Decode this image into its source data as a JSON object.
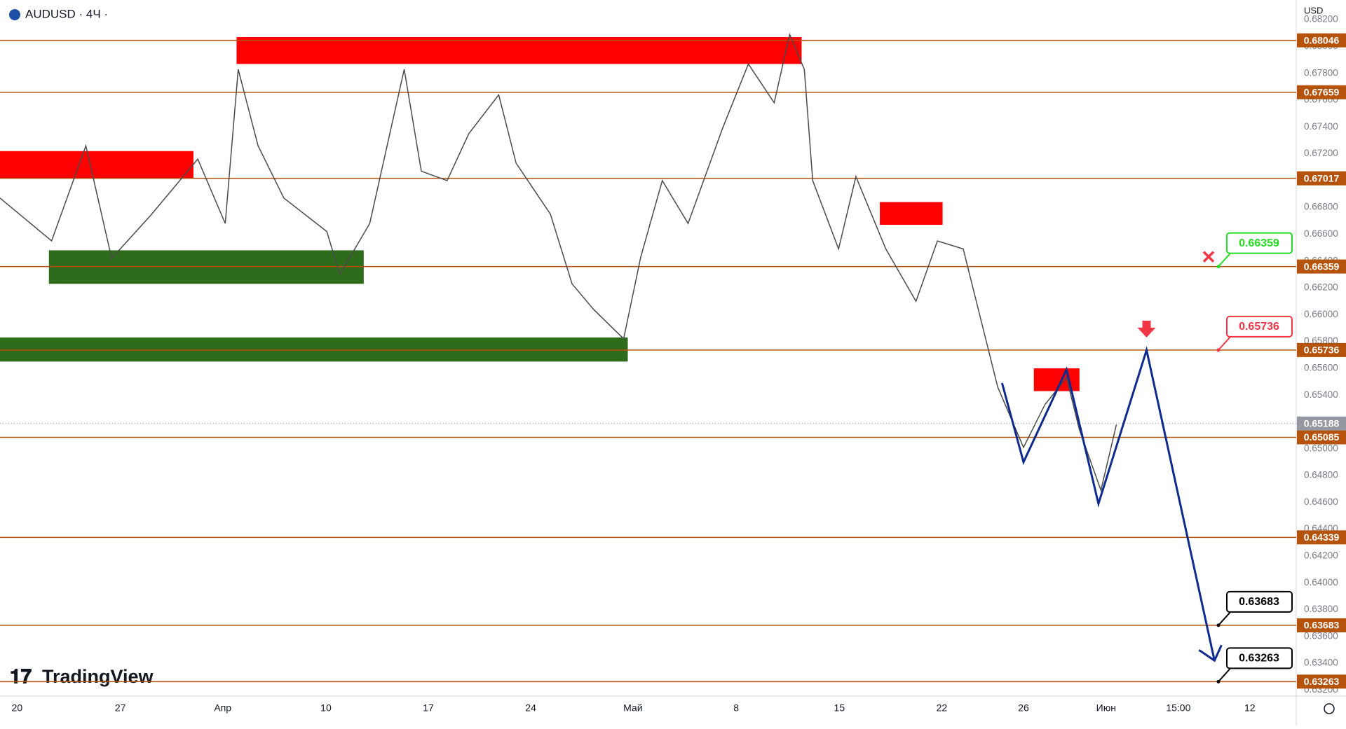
{
  "header": {
    "symbol": "AUDUSD · 4Ч ·",
    "currency": "USD",
    "brand": "TradingView"
  },
  "chart_data": {
    "type": "line",
    "color": "#4a4a4a",
    "x": [
      -0.83,
      1.67,
      3.33,
      4.58,
      6.46,
      8.75,
      10.08,
      10.71,
      11.67,
      12.92,
      15,
      15.63,
      17.08,
      18.75,
      19.58,
      20.83,
      21.88,
      23.33,
      24.17,
      25.83,
      26.88,
      27.92,
      29.38,
      30.21,
      31.25,
      32.5,
      34.17,
      35.42,
      36.67,
      37.42,
      38.13,
      38.54,
      39.79,
      40.63,
      42.08,
      43.54,
      44.58,
      45.83,
      47.5,
      48.75,
      49.79,
      50.83,
      51.46,
      52.5,
      53.25
    ],
    "values": [
      0.6687,
      0.6655,
      0.6726,
      0.6642,
      0.6674,
      0.6716,
      0.6668,
      0.6783,
      0.6726,
      0.6687,
      0.6662,
      0.663,
      0.6668,
      0.6783,
      0.6707,
      0.67,
      0.6735,
      0.6764,
      0.6713,
      0.6675,
      0.6623,
      0.6604,
      0.6582,
      0.6643,
      0.67,
      0.6668,
      0.6739,
      0.6787,
      0.6758,
      0.6809,
      0.6783,
      0.67,
      0.6649,
      0.6703,
      0.6649,
      0.661,
      0.6655,
      0.6649,
      0.6546,
      0.6501,
      0.6533,
      0.6553,
      0.6514,
      0.6469,
      0.6518
    ],
    "projection": {
      "color": "#0d2a8c",
      "x": [
        47.71,
        48.75,
        50.83,
        52.38,
        54.71,
        58
      ],
      "values": [
        0.6549,
        0.649,
        0.6559,
        0.6459,
        0.65736,
        0.6342
      ]
    },
    "zones": [
      {
        "x": [
          10.63,
          38
        ],
        "y": [
          0.6787,
          0.6807
        ],
        "color": "#ff0000"
      },
      {
        "x": [
          -0.83,
          8.54
        ],
        "y": [
          0.6702,
          0.6722
        ],
        "color": "#ff0000"
      },
      {
        "x": [
          1.54,
          16.79
        ],
        "y": [
          0.6623,
          0.6648
        ],
        "color": "#2e6b1a"
      },
      {
        "x": [
          -0.83,
          29.58
        ],
        "y": [
          0.6565,
          0.6583
        ],
        "color": "#2e6b1a"
      },
      {
        "x": [
          41.79,
          44.83
        ],
        "y": [
          0.6667,
          0.6684
        ],
        "color": "#ff0000"
      },
      {
        "x": [
          49.25,
          51.46
        ],
        "y": [
          0.6543,
          0.656
        ],
        "color": "#ff0000"
      }
    ],
    "levels": [
      0.68046,
      0.67659,
      0.67017,
      0.66359,
      0.65736,
      0.65085,
      0.64339,
      0.63683,
      0.63263
    ],
    "level_color": "#b5530c",
    "last_price": 0.65188,
    "callouts": [
      {
        "value": 0.66359,
        "color": "#22dd22"
      },
      {
        "value": 0.65736,
        "color": "#f23645"
      },
      {
        "value": 0.63683,
        "color": "#000000"
      },
      {
        "value": 0.63263,
        "color": "#000000"
      }
    ],
    "xlim": [
      -0.83,
      61.96
    ],
    "ylim": [
      0.63155,
      0.68347
    ],
    "xticks": [
      {
        "value": 0,
        "label": "20"
      },
      {
        "value": 5,
        "label": "27"
      },
      {
        "value": 9.96,
        "label": "Апр"
      },
      {
        "value": 14.96,
        "label": "10"
      },
      {
        "value": 19.92,
        "label": "17"
      },
      {
        "value": 24.88,
        "label": "24"
      },
      {
        "value": 29.83,
        "label": "Май"
      },
      {
        "value": 34.83,
        "label": "8"
      },
      {
        "value": 39.83,
        "label": "15"
      },
      {
        "value": 44.79,
        "label": "22"
      },
      {
        "value": 48.75,
        "label": "26"
      },
      {
        "value": 52.75,
        "label": "Июн"
      },
      {
        "value": 56.25,
        "label": "15:00"
      },
      {
        "value": 59.71,
        "label": "12"
      }
    ],
    "yticks": [
      {
        "value": 0.632,
        "label": "0.63200"
      },
      {
        "value": 0.634,
        "label": "0.63400"
      },
      {
        "value": 0.636,
        "label": "0.63600"
      },
      {
        "value": 0.638,
        "label": "0.63800"
      },
      {
        "value": 0.64,
        "label": "0.64000"
      },
      {
        "value": 0.642,
        "label": "0.64200"
      },
      {
        "value": 0.644,
        "label": "0.64400"
      },
      {
        "value": 0.646,
        "label": "0.64600"
      },
      {
        "value": 0.648,
        "label": "0.64800"
      },
      {
        "value": 0.65,
        "label": "0.65000"
      },
      {
        "value": 0.652,
        "label": "0.65200"
      },
      {
        "value": 0.654,
        "label": "0.65400"
      },
      {
        "value": 0.656,
        "label": "0.65600"
      },
      {
        "value": 0.658,
        "label": "0.65800"
      },
      {
        "value": 0.66,
        "label": "0.66000"
      },
      {
        "value": 0.662,
        "label": "0.66200"
      },
      {
        "value": 0.664,
        "label": "0.66400"
      },
      {
        "value": 0.666,
        "label": "0.66600"
      },
      {
        "value": 0.668,
        "label": "0.66800"
      },
      {
        "value": 0.67,
        "label": "0.67000"
      },
      {
        "value": 0.672,
        "label": "0.67200"
      },
      {
        "value": 0.674,
        "label": "0.67400"
      },
      {
        "value": 0.676,
        "label": "0.67600"
      },
      {
        "value": 0.678,
        "label": "0.67800"
      },
      {
        "value": 0.68,
        "label": "0.68000"
      },
      {
        "value": 0.682,
        "label": "0.68200"
      }
    ]
  }
}
